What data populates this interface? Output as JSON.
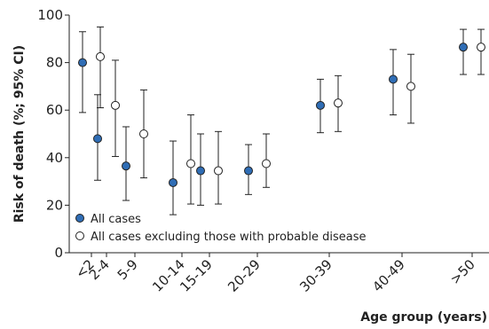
{
  "chart_data": {
    "type": "scatter",
    "xlabel": "Age group (years)",
    "ylabel": "Risk of death (%; 95% CI)",
    "ylim": [
      0,
      100
    ],
    "yticks": [
      0,
      20,
      40,
      60,
      80,
      100
    ],
    "grid": false,
    "legend_position": "bottom-left",
    "categories": [
      "<2",
      "2-4",
      "5-9",
      "10-14",
      "15-19",
      "20-29",
      "30-39",
      "40-49",
      ">50"
    ],
    "series": [
      {
        "name": "All cases",
        "color": "#2f6db5",
        "values": [
          80,
          48,
          36.5,
          29.5,
          34.5,
          34.5,
          62,
          73,
          86.5
        ],
        "ci_low": [
          59,
          30.5,
          22,
          16,
          20,
          24.5,
          50.5,
          58,
          75
        ],
        "ci_high": [
          93,
          66.5,
          53,
          47,
          50,
          45.5,
          73,
          85.5,
          94
        ]
      },
      {
        "name": "All cases excluding those with probable disease",
        "color": "#ffffff",
        "values": [
          82.5,
          62,
          50,
          37.5,
          34.5,
          37.5,
          63,
          70,
          86.5
        ],
        "ci_low": [
          61,
          40.5,
          31.5,
          20.5,
          20.5,
          27.5,
          51,
          54.5,
          75
        ],
        "ci_high": [
          95,
          81,
          68.5,
          58,
          51,
          50,
          74.5,
          83.5,
          94
        ]
      }
    ]
  }
}
